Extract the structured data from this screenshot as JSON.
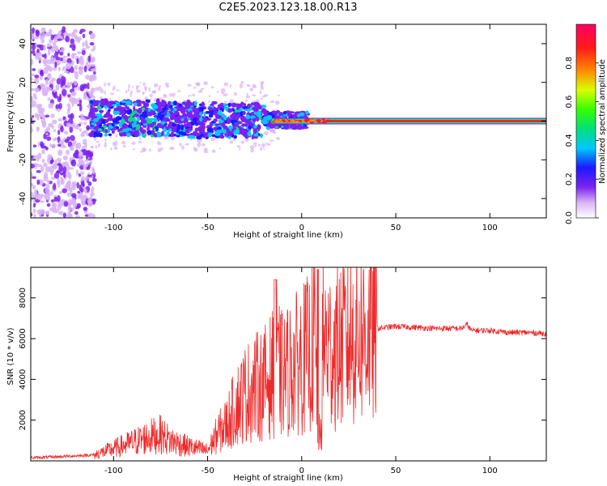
{
  "title": "C2E5.2023.123.18.00.R13",
  "chart_data": [
    {
      "type": "heatmap",
      "xlabel": "Height of straight line (km)",
      "ylabel": "Frequency (Hz)",
      "xlim": [
        -144,
        130
      ],
      "ylim": [
        -50,
        50
      ],
      "xticks": [
        -100,
        -50,
        0,
        50,
        100
      ],
      "yticks": [
        -40,
        -20,
        0,
        20,
        40
      ],
      "colorbar": {
        "label": "Normalized spectral amplitude",
        "range": [
          0,
          1
        ],
        "ticks": [
          0.0,
          0.2,
          0.4,
          0.6,
          0.8
        ],
        "colors": [
          "#ffffff",
          "#d8b3f5",
          "#7b22f0",
          "#1a1aff",
          "#00c8ff",
          "#00e07a",
          "#33ff00",
          "#d8ff00",
          "#ff8a00",
          "#ff1a1a",
          "#ff0066"
        ]
      },
      "regions": [
        {
          "x": [
            -144,
            -110
          ],
          "y": [
            -50,
            48
          ],
          "amplitude": 0.15
        },
        {
          "x": [
            -112,
            -15
          ],
          "y": [
            -10,
            13
          ],
          "amplitude": 0.35
        },
        {
          "x": [
            -15,
            130
          ],
          "y": [
            -1.5,
            1.5
          ],
          "amplitude": 0.9
        }
      ]
    },
    {
      "type": "line",
      "xlabel": "Height of straight line (km)",
      "ylabel": "SNR (10 * v/v)",
      "xlim": [
        -144,
        130
      ],
      "ylim": [
        0,
        9500
      ],
      "xticks": [
        -100,
        -50,
        0,
        50,
        100
      ],
      "yticks": [
        2000,
        4000,
        6000,
        8000
      ],
      "color": "#ee2a2a",
      "x": [
        -144,
        -130,
        -120,
        -110,
        -100,
        -90,
        -80,
        -75,
        -70,
        -60,
        -55,
        -50,
        -45,
        -40,
        -35,
        -30,
        -25,
        -20,
        -15,
        -13,
        -10,
        -5,
        0,
        3,
        5,
        7,
        9,
        10,
        12,
        15,
        20,
        25,
        30,
        35,
        40,
        45,
        50,
        60,
        70,
        80,
        85,
        88,
        90,
        100,
        110,
        120,
        130
      ],
      "y": [
        150,
        200,
        250,
        300,
        600,
        900,
        1200,
        1300,
        1000,
        700,
        600,
        500,
        1300,
        1800,
        2700,
        3300,
        3600,
        3800,
        4300,
        4500,
        4200,
        4600,
        5000,
        5200,
        5300,
        6200,
        500,
        5800,
        5800,
        5500,
        5600,
        6000,
        6200,
        6400,
        6500,
        6550,
        6600,
        6550,
        6500,
        6500,
        6500,
        6700,
        6400,
        6400,
        6300,
        6300,
        6250
      ]
    }
  ]
}
